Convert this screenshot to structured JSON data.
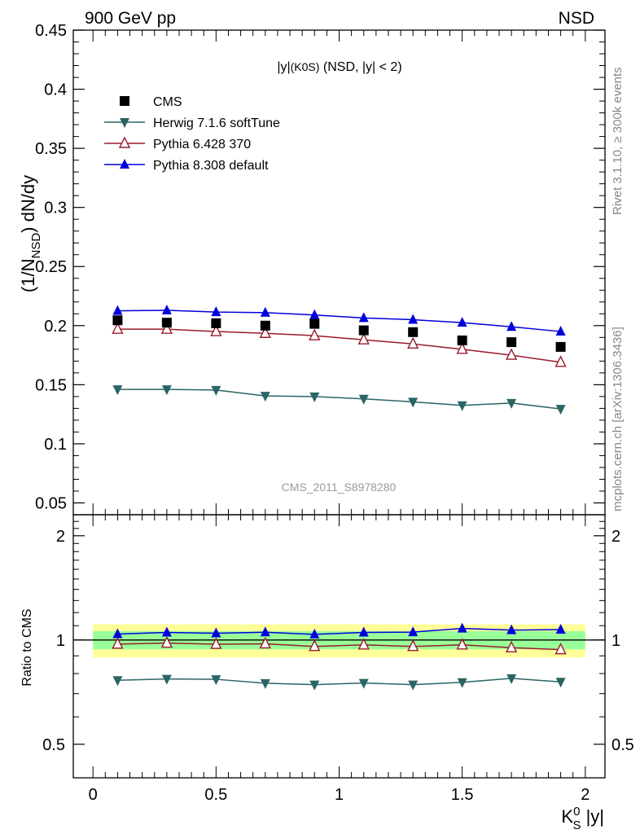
{
  "header": {
    "left": "900 GeV pp",
    "right": "NSD"
  },
  "side_labels": {
    "rivet": "Rivet 3.1.10, ≥ 300k events",
    "mcplots": "mcplots.cern.ch [arXiv:1306.3436]"
  },
  "plot_title": "|y|(K0S) (NSD, |y| < 2)",
  "watermark": "CMS_2011_S8978280",
  "axes": {
    "y_main": "(1/N_NSD) dN/dy",
    "y_ratio": "Ratio to CMS",
    "x": "K_S^0 |y|"
  },
  "colors": {
    "CMS": "#000000",
    "Herwig 7.1.6 softTune": "#2a6565",
    "Pythia 6.428 370": "#9a1a2a",
    "Pythia 8.308 default": "#0000dd",
    "band_inner": "#99ff99",
    "band_outer": "#ffff99"
  },
  "chart_data": [
    {
      "type": "line",
      "panel": "main",
      "x": [
        0.1,
        0.3,
        0.5,
        0.7,
        0.9,
        1.1,
        1.3,
        1.5,
        1.7,
        1.9
      ],
      "series": [
        {
          "name": "CMS",
          "marker": "square",
          "values": [
            0.2045,
            0.2025,
            0.202,
            0.2,
            0.2015,
            0.196,
            0.1945,
            0.1875,
            0.186,
            0.182
          ]
        },
        {
          "name": "Herwig 7.1.6 softTune",
          "marker": "triangle-down",
          "values": [
            0.146,
            0.146,
            0.1455,
            0.1405,
            0.14,
            0.138,
            0.1355,
            0.1325,
            0.1345,
            0.1295
          ]
        },
        {
          "name": "Pythia 6.428 370",
          "marker": "triangle-up-open",
          "values": [
            0.197,
            0.197,
            0.195,
            0.1935,
            0.1915,
            0.188,
            0.1845,
            0.18,
            0.175,
            0.169
          ]
        },
        {
          "name": "Pythia 8.308 default",
          "marker": "triangle-up",
          "values": [
            0.2125,
            0.213,
            0.2115,
            0.211,
            0.209,
            0.2065,
            0.205,
            0.2025,
            0.199,
            0.195
          ]
        }
      ],
      "xlim": [
        -0.08,
        2.08
      ],
      "ylim": [
        0.04,
        0.45
      ],
      "yticks": [
        0.05,
        0.1,
        0.15,
        0.2,
        0.25,
        0.3,
        0.35,
        0.4,
        0.45
      ],
      "ytick_labels": [
        "0.05",
        "0.1",
        "0.15",
        "0.2",
        "0.25",
        "0.3",
        "0.35",
        "0.4",
        "0.45"
      ],
      "legend": "top-left"
    },
    {
      "type": "line",
      "panel": "ratio",
      "x": [
        0.1,
        0.3,
        0.5,
        0.7,
        0.9,
        1.1,
        1.3,
        1.5,
        1.7,
        1.9
      ],
      "series": [
        {
          "name": "Herwig 7.1.6 softTune",
          "marker": "triangle-down",
          "values": [
            0.765,
            0.772,
            0.77,
            0.75,
            0.743,
            0.751,
            0.743,
            0.755,
            0.775,
            0.757
          ]
        },
        {
          "name": "Pythia 6.428 370",
          "marker": "triangle-up-open",
          "values": [
            0.973,
            0.98,
            0.972,
            0.975,
            0.958,
            0.968,
            0.958,
            0.968,
            0.95,
            0.938
          ]
        },
        {
          "name": "Pythia 8.308 default",
          "marker": "triangle-up",
          "values": [
            1.04,
            1.052,
            1.046,
            1.053,
            1.038,
            1.052,
            1.054,
            1.08,
            1.068,
            1.072
          ]
        }
      ],
      "band_inner": [
        0.94,
        1.06
      ],
      "band_outer": [
        0.89,
        1.11
      ],
      "xlim": [
        -0.08,
        2.08
      ],
      "ylim": [
        0.4,
        2.3
      ],
      "yticks": [
        0.5,
        1,
        2
      ],
      "ytick_labels": [
        "0.5",
        "1",
        "2"
      ],
      "xticks": [
        0,
        0.5,
        1,
        1.5,
        2
      ],
      "xtick_labels": [
        "0",
        "0.5",
        "1",
        "1.5",
        "2"
      ]
    }
  ]
}
